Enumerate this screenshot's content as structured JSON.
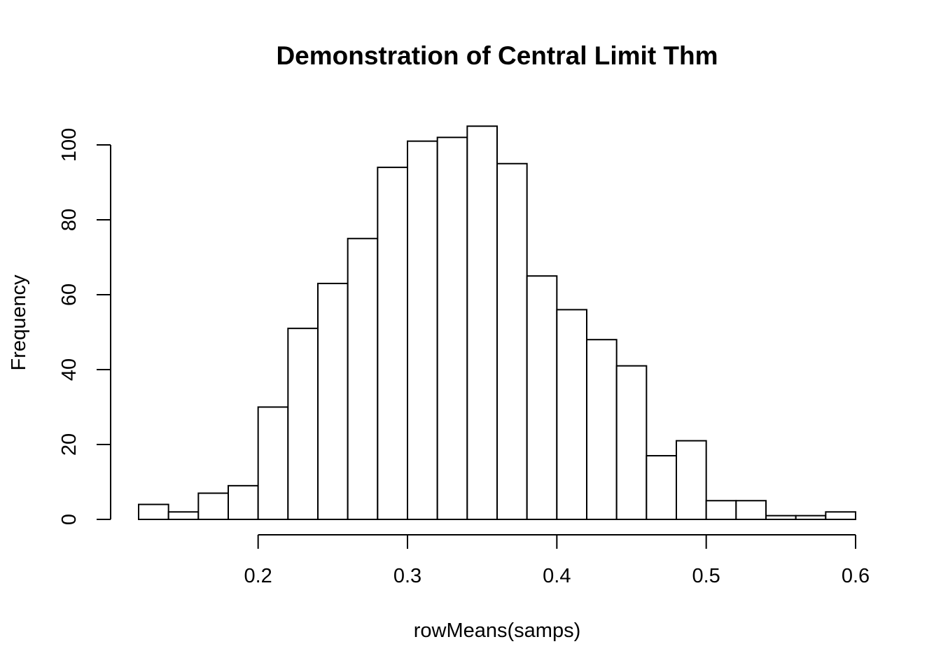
{
  "chart_data": {
    "type": "bar",
    "title": "Demonstration of Central Limit Thm",
    "xlabel": "rowMeans(samps)",
    "ylabel": "Frequency",
    "bins": [
      {
        "x0": 0.12,
        "x1": 0.14,
        "count": 4
      },
      {
        "x0": 0.14,
        "x1": 0.16,
        "count": 2
      },
      {
        "x0": 0.16,
        "x1": 0.18,
        "count": 7
      },
      {
        "x0": 0.18,
        "x1": 0.2,
        "count": 9
      },
      {
        "x0": 0.2,
        "x1": 0.22,
        "count": 30
      },
      {
        "x0": 0.22,
        "x1": 0.24,
        "count": 51
      },
      {
        "x0": 0.24,
        "x1": 0.26,
        "count": 63
      },
      {
        "x0": 0.26,
        "x1": 0.28,
        "count": 75
      },
      {
        "x0": 0.28,
        "x1": 0.3,
        "count": 94
      },
      {
        "x0": 0.3,
        "x1": 0.32,
        "count": 101
      },
      {
        "x0": 0.32,
        "x1": 0.34,
        "count": 102
      },
      {
        "x0": 0.34,
        "x1": 0.36,
        "count": 105
      },
      {
        "x0": 0.36,
        "x1": 0.38,
        "count": 95
      },
      {
        "x0": 0.38,
        "x1": 0.4,
        "count": 65
      },
      {
        "x0": 0.4,
        "x1": 0.42,
        "count": 56
      },
      {
        "x0": 0.42,
        "x1": 0.44,
        "count": 48
      },
      {
        "x0": 0.44,
        "x1": 0.46,
        "count": 41
      },
      {
        "x0": 0.46,
        "x1": 0.48,
        "count": 17
      },
      {
        "x0": 0.48,
        "x1": 0.5,
        "count": 21
      },
      {
        "x0": 0.5,
        "x1": 0.52,
        "count": 5
      },
      {
        "x0": 0.52,
        "x1": 0.54,
        "count": 5
      },
      {
        "x0": 0.54,
        "x1": 0.56,
        "count": 1
      },
      {
        "x0": 0.56,
        "x1": 0.58,
        "count": 1
      },
      {
        "x0": 0.58,
        "x1": 0.6,
        "count": 2
      }
    ],
    "x_ticks": [
      {
        "value": 0.2,
        "label": "0.2"
      },
      {
        "value": 0.3,
        "label": "0.3"
      },
      {
        "value": 0.4,
        "label": "0.4"
      },
      {
        "value": 0.5,
        "label": "0.5"
      },
      {
        "value": 0.6,
        "label": "0.6"
      }
    ],
    "y_ticks": [
      {
        "value": 0,
        "label": "0"
      },
      {
        "value": 20,
        "label": "20"
      },
      {
        "value": 40,
        "label": "40"
      },
      {
        "value": 60,
        "label": "60"
      },
      {
        "value": 80,
        "label": "80"
      },
      {
        "value": 100,
        "label": "100"
      }
    ],
    "xlim": [
      0.12,
      0.6
    ],
    "ylim": [
      0,
      105
    ],
    "grid": false,
    "legend": "none",
    "bar_fill": "#ffffff",
    "bar_stroke": "#000000"
  }
}
